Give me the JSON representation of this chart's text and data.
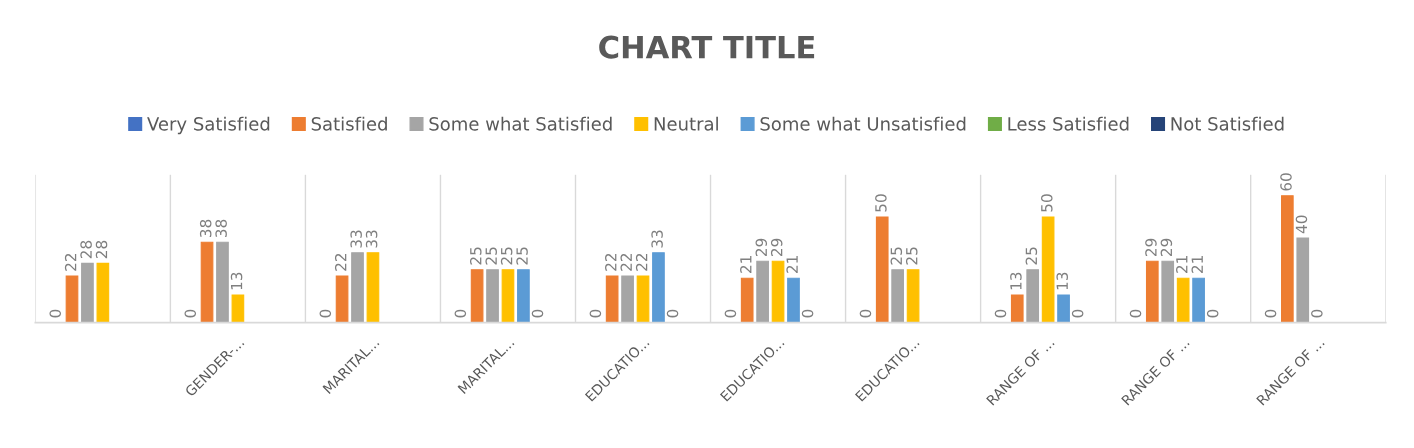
{
  "chart_data": {
    "type": "bar",
    "title": "CHART TITLE",
    "categories": [
      null,
      "GENDER-...",
      "MARITAL...",
      "MARITAL...",
      "EDUCATIO...",
      "EDUCATIO...",
      "EDUCATIO...",
      "RANGE OF ...",
      "RANGE OF ...",
      "RANGE OF ..."
    ],
    "series": [
      {
        "name": "Very Satisfied",
        "color": "#4472c4",
        "values": [
          0,
          0,
          0,
          0,
          0,
          0,
          0,
          0,
          0,
          0
        ]
      },
      {
        "name": "Satisfied",
        "color": "#ed7d31",
        "values": [
          22,
          38,
          22,
          25,
          22,
          21,
          50,
          13,
          29,
          60
        ]
      },
      {
        "name": "Some what Satisfied",
        "color": "#a5a5a5",
        "values": [
          28,
          38,
          33,
          25,
          22,
          29,
          25,
          25,
          29,
          40
        ]
      },
      {
        "name": "Neutral",
        "color": "#ffc000",
        "values": [
          28,
          13,
          33,
          25,
          22,
          29,
          25,
          50,
          21,
          0
        ]
      },
      {
        "name": "Some what Unsatisfied",
        "color": "#5b9bd5",
        "values": [
          null,
          null,
          null,
          25,
          33,
          21,
          null,
          13,
          21,
          null
        ]
      },
      {
        "name": "Less Satisfied",
        "color": "#70ad47",
        "values": [
          null,
          null,
          null,
          0,
          0,
          0,
          null,
          0,
          0,
          null
        ]
      },
      {
        "name": "Not Satisfied",
        "color": "#264478",
        "values": [
          null,
          null,
          null,
          null,
          null,
          null,
          null,
          null,
          null,
          null
        ]
      }
    ],
    "ylim": [
      0,
      70
    ],
    "tick_labels": "x",
    "grid": "x",
    "legend": "top",
    "data_labels": true
  }
}
